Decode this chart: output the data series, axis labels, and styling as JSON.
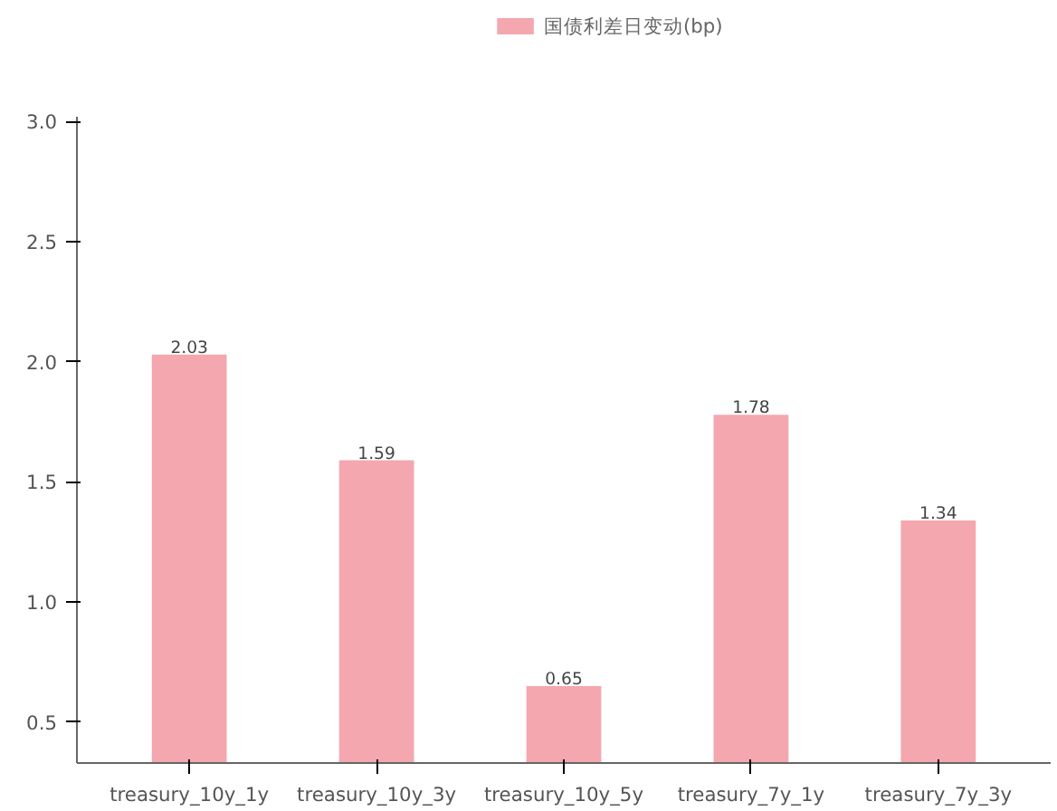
{
  "chart_data": {
    "type": "bar",
    "categories": [
      "treasury_10y_1y",
      "treasury_10y_3y",
      "treasury_10y_5y",
      "treasury_7y_1y",
      "treasury_7y_3y"
    ],
    "series": [
      {
        "name": "国债利差日变动(bp)",
        "color": "#f4a7ae",
        "values": [
          2.03,
          1.59,
          0.65,
          1.78,
          1.34
        ]
      }
    ],
    "ylim": [
      0.33,
      3.02
    ],
    "yticks": [
      0.5,
      {
        "value": 1,
        "label": "1.0"
      },
      1.5,
      {
        "value": 2,
        "label": "2.0"
      },
      2.5,
      {
        "value": 3,
        "label": "3.0"
      }
    ],
    "data_labels": true,
    "legend": "top",
    "grid": false
  }
}
